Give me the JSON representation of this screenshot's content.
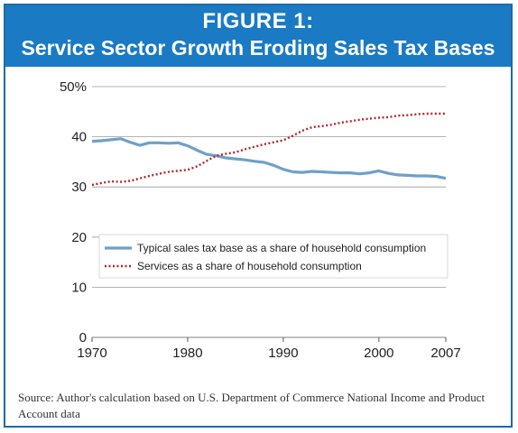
{
  "figure": {
    "label": "FIGURE 1:",
    "title": "Service Sector Growth Eroding Sales Tax Bases",
    "source": "Source: Author's calculation based on U.S. Department of Commerce National Income and Product Account data"
  },
  "colors": {
    "header_bg": "#1a7ac4",
    "series_tax": "#6fa0c8",
    "series_services": "#b5252b",
    "grid": "#9a9a9a"
  },
  "chart_data": {
    "type": "line",
    "title": "",
    "xlabel": "",
    "ylabel": "",
    "xlim": [
      1970,
      2007
    ],
    "ylim": [
      0,
      50
    ],
    "x_ticks": [
      "1970",
      "1980",
      "1990",
      "2000",
      "2007"
    ],
    "y_ticks": [
      "0",
      "10",
      "20",
      "30",
      "40",
      "50%"
    ],
    "grid": true,
    "legend_position": "center-left",
    "x": [
      1970,
      1971,
      1972,
      1973,
      1974,
      1975,
      1976,
      1977,
      1978,
      1979,
      1980,
      1981,
      1982,
      1983,
      1984,
      1985,
      1986,
      1987,
      1988,
      1989,
      1990,
      1991,
      1992,
      1993,
      1994,
      1995,
      1996,
      1997,
      1998,
      1999,
      2000,
      2001,
      2002,
      2003,
      2004,
      2005,
      2006,
      2007
    ],
    "series": [
      {
        "name": "Typical sales tax base as a share of household consumption",
        "style": "solid",
        "color": "#6fa0c8",
        "values": [
          39.1,
          39.2,
          39.4,
          39.6,
          38.9,
          38.3,
          38.8,
          38.8,
          38.7,
          38.8,
          38.2,
          37.3,
          36.5,
          36.2,
          35.8,
          35.6,
          35.4,
          35.1,
          34.9,
          34.3,
          33.5,
          33.0,
          32.9,
          33.1,
          33.0,
          32.9,
          32.8,
          32.8,
          32.6,
          32.8,
          33.2,
          32.7,
          32.4,
          32.3,
          32.2,
          32.2,
          32.1,
          31.7
        ]
      },
      {
        "name": "Services as a share of household consumption",
        "style": "dotted",
        "color": "#b5252b",
        "values": [
          30.4,
          30.8,
          31.1,
          31.0,
          31.2,
          31.7,
          32.2,
          32.6,
          33.0,
          33.2,
          33.4,
          34.1,
          35.2,
          36.2,
          36.6,
          36.9,
          37.5,
          38.0,
          38.5,
          38.9,
          39.3,
          40.2,
          41.2,
          41.9,
          42.1,
          42.4,
          42.8,
          43.1,
          43.4,
          43.6,
          43.8,
          43.9,
          44.2,
          44.3,
          44.5,
          44.6,
          44.6,
          44.6
        ]
      }
    ]
  }
}
